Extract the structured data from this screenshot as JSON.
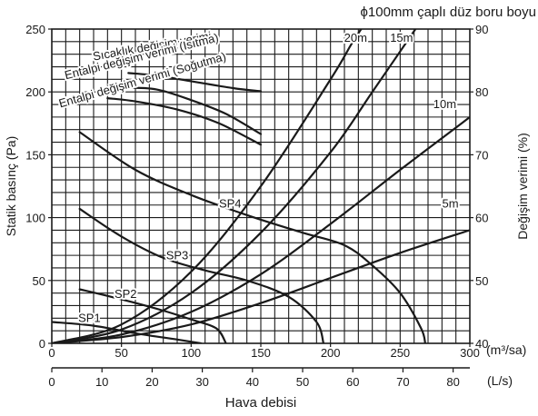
{
  "chart_data": {
    "type": "line",
    "title": "ϕ100mm çaplı düz boru boyu",
    "xlabel": "Hava debisi",
    "ylabel_left": "Statik basınç (Pa)",
    "ylabel_right": "Değişim verimi (%)",
    "x_unit_primary": "(m³/sa)",
    "x_unit_secondary": "(L/s)",
    "xlim_primary": [
      0,
      300
    ],
    "xlim_secondary": [
      0,
      83.33
    ],
    "ylim_left": [
      0,
      250
    ],
    "ylim_right": [
      40,
      90
    ],
    "grid": true,
    "x_ticks_primary": [
      "0",
      "50",
      "100",
      "150",
      "200",
      "250",
      "300"
    ],
    "x_ticks_secondary": [
      "0",
      "10",
      "20",
      "30",
      "40",
      "50",
      "60",
      "70",
      "80"
    ],
    "y_ticks_left": [
      "0",
      "50",
      "100",
      "150",
      "200",
      "250"
    ],
    "y_ticks_right": [
      "40",
      "50",
      "60",
      "70",
      "80",
      "90"
    ],
    "series": [
      {
        "name": "SP1",
        "axis": "left",
        "label_at": [
          27,
          17
        ],
        "points": [
          [
            0,
            17
          ],
          [
            30,
            14
          ],
          [
            60,
            8
          ],
          [
            90,
            3
          ],
          [
            107,
            0
          ]
        ]
      },
      {
        "name": "SP2",
        "axis": "left",
        "label_at": [
          53,
          36
        ],
        "points": [
          [
            20,
            43
          ],
          [
            50,
            35
          ],
          [
            80,
            26
          ],
          [
            100,
            19
          ],
          [
            118,
            12
          ],
          [
            125,
            0
          ]
        ]
      },
      {
        "name": "SP3",
        "axis": "left",
        "label_at": [
          90,
          67
        ],
        "points": [
          [
            20,
            107
          ],
          [
            50,
            85
          ],
          [
            80,
            68
          ],
          [
            110,
            58
          ],
          [
            140,
            50
          ],
          [
            170,
            37
          ],
          [
            190,
            17
          ],
          [
            195,
            0
          ]
        ]
      },
      {
        "name": "SP4",
        "axis": "left",
        "label_at": [
          128,
          108
        ],
        "points": [
          [
            20,
            168
          ],
          [
            60,
            138
          ],
          [
            100,
            118
          ],
          [
            140,
            102
          ],
          [
            180,
            88
          ],
          [
            210,
            78
          ],
          [
            230,
            62
          ],
          [
            250,
            40
          ],
          [
            265,
            12
          ],
          [
            268,
            0
          ]
        ]
      },
      {
        "name": "Sıcaklık değişim verimi",
        "axis": "right",
        "label_at": [
          30,
          85
        ],
        "label_angle": -10,
        "points": [
          [
            55,
            83
          ],
          [
            75,
            82.6
          ],
          [
            100,
            81.7
          ],
          [
            130,
            80.6
          ],
          [
            150,
            80.1
          ]
        ]
      },
      {
        "name": "Entalpi değişim verimi (Isıtma)",
        "axis": "right",
        "label_at": [
          10,
          82
        ],
        "label_angle": -14,
        "points": [
          [
            50,
            80.7
          ],
          [
            75,
            80.4
          ],
          [
            100,
            78.7
          ],
          [
            125,
            76.5
          ],
          [
            150,
            73.3
          ]
        ]
      },
      {
        "name": "Entalpi değişim verimi (Soğutma)",
        "axis": "right",
        "label_at": [
          6,
          77.5
        ],
        "label_angle": -16,
        "points": [
          [
            40,
            79
          ],
          [
            60,
            78.5
          ],
          [
            90,
            77.2
          ],
          [
            120,
            75
          ],
          [
            150,
            71.6
          ]
        ]
      },
      {
        "name": "5m",
        "axis": "left",
        "label_at": [
          286,
          108
        ],
        "points": [
          [
            0,
            0
          ],
          [
            50,
            5
          ],
          [
            100,
            15
          ],
          [
            150,
            32
          ],
          [
            200,
            52
          ],
          [
            250,
            72
          ],
          [
            300,
            90
          ]
        ]
      },
      {
        "name": "10m",
        "axis": "left",
        "label_at": [
          282,
          187
        ],
        "points": [
          [
            0,
            0
          ],
          [
            50,
            7
          ],
          [
            100,
            25
          ],
          [
            150,
            55
          ],
          [
            200,
            95
          ],
          [
            250,
            138
          ],
          [
            300,
            180
          ]
        ]
      },
      {
        "name": "15m",
        "axis": "left",
        "label_at": [
          251,
          240
        ],
        "points": [
          [
            0,
            0
          ],
          [
            50,
            11
          ],
          [
            100,
            40
          ],
          [
            150,
            88
          ],
          [
            200,
            152
          ],
          [
            230,
            200
          ],
          [
            261,
            250
          ]
        ]
      },
      {
        "name": "20m",
        "axis": "left",
        "label_at": [
          218,
          240
        ],
        "points": [
          [
            0,
            0
          ],
          [
            50,
            15
          ],
          [
            100,
            57
          ],
          [
            150,
            125
          ],
          [
            200,
            210
          ],
          [
            215,
            238
          ],
          [
            222,
            250
          ]
        ]
      }
    ]
  }
}
